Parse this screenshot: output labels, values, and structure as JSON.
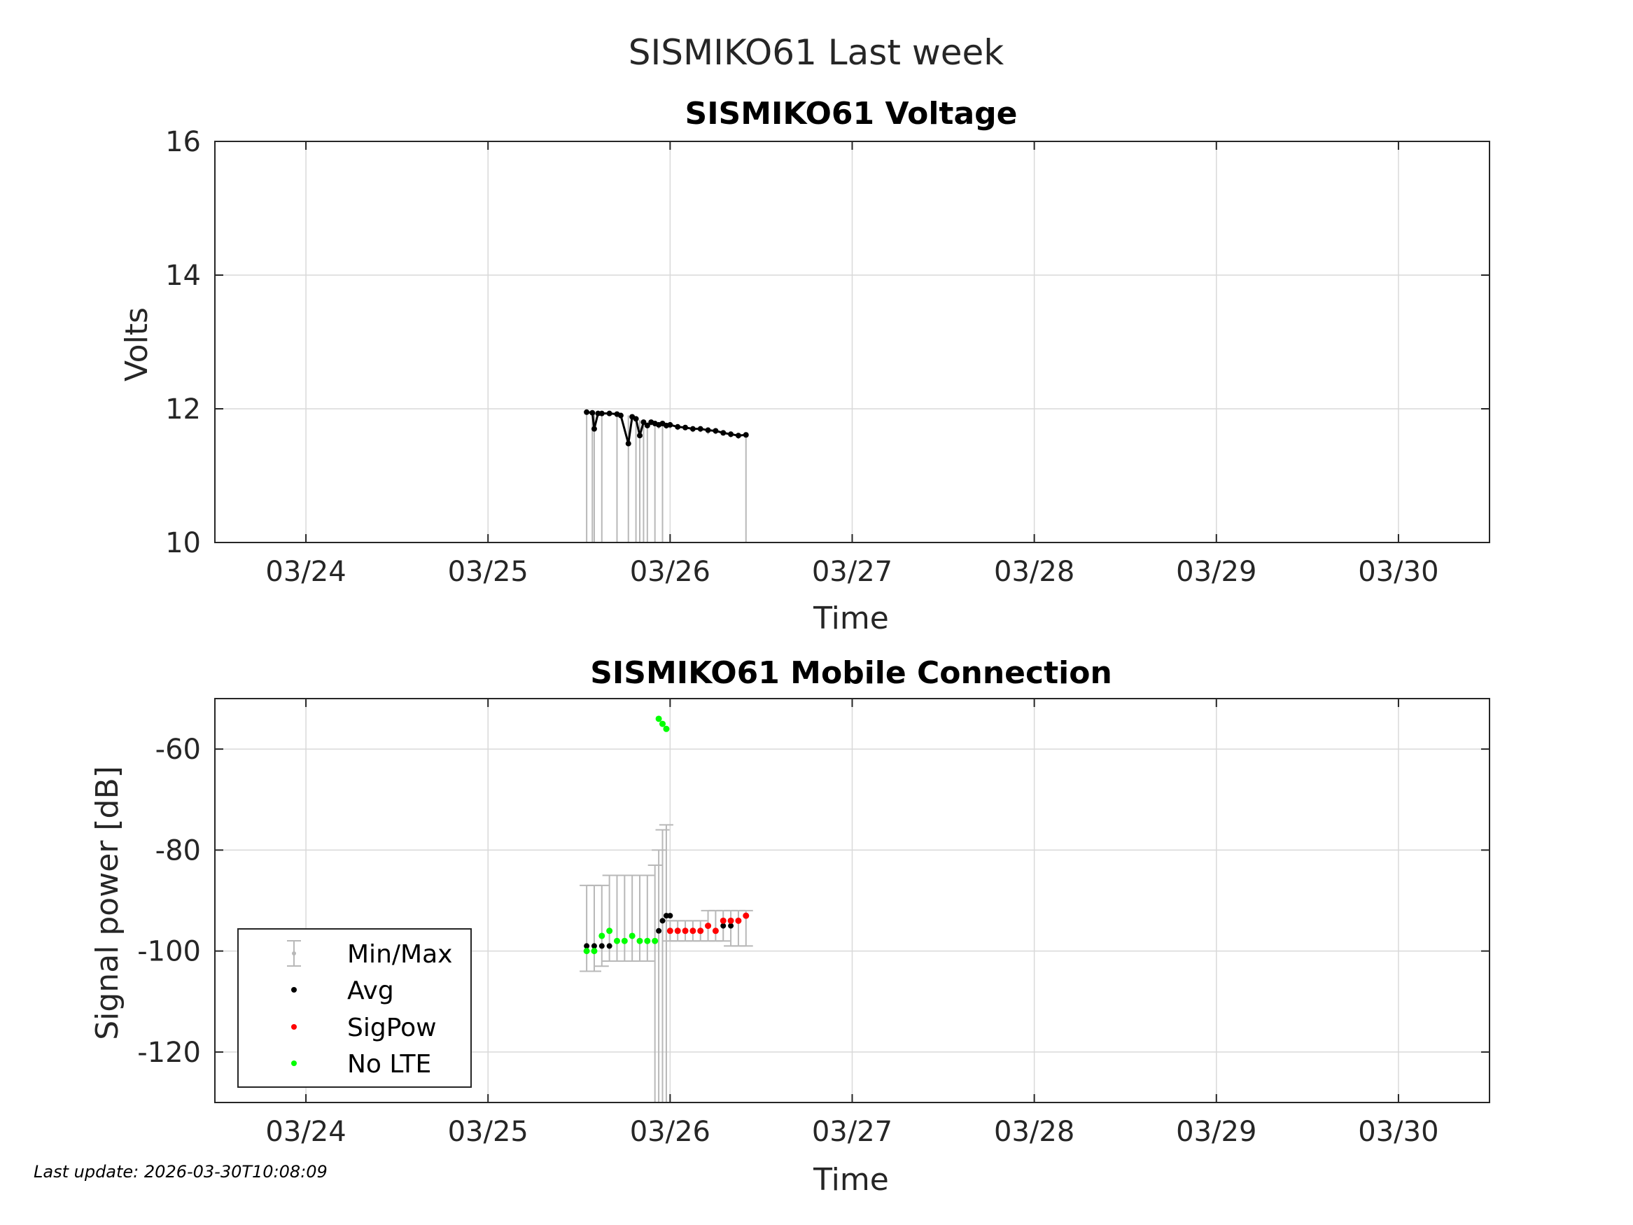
{
  "figure_title": "SISMIKO61 Last week",
  "footer": "Last update: 2026-03-30T10:08:09",
  "colors": {
    "axis": "#262626",
    "grid": "#d9d9d9",
    "minmax": "#b8b8b8",
    "avg": "#000000",
    "sigpow": "#ff0000",
    "nolte": "#00ff00",
    "voltage_line": "#000000"
  },
  "chart_data": [
    {
      "type": "scatter",
      "title": "SISMIKO61 Voltage",
      "xlabel": "Time",
      "ylabel": "Volts",
      "xlim": [
        "2026-03-23 12:00",
        "2026-03-30 12:00"
      ],
      "ylim": [
        10,
        16
      ],
      "xticks": [
        "03/24",
        "03/25",
        "03/26",
        "03/27",
        "03/28",
        "03/29",
        "03/30"
      ],
      "yticks": [
        "10",
        "12",
        "14",
        "16"
      ],
      "grid": true,
      "series": [
        {
          "values_kind": "voltage",
          "x": [
            "2026-03-25 13:00",
            "2026-03-25 13:45",
            "2026-03-25 14:00",
            "2026-03-25 14:30",
            "2026-03-25 15:00",
            "2026-03-25 16:00",
            "2026-03-25 17:00",
            "2026-03-25 17:30",
            "2026-03-25 18:30",
            "2026-03-25 19:00",
            "2026-03-25 19:30",
            "2026-03-25 20:00",
            "2026-03-25 20:30",
            "2026-03-25 21:00",
            "2026-03-25 21:30",
            "2026-03-25 22:00",
            "2026-03-25 22:30",
            "2026-03-25 23:00",
            "2026-03-25 23:30",
            "2026-03-26 00:00",
            "2026-03-26 01:00",
            "2026-03-26 02:00",
            "2026-03-26 03:00",
            "2026-03-26 04:00",
            "2026-03-26 05:00",
            "2026-03-26 06:00",
            "2026-03-26 07:00",
            "2026-03-26 08:00",
            "2026-03-26 09:00",
            "2026-03-26 10:00"
          ],
          "y": [
            11.95,
            11.94,
            11.7,
            11.93,
            11.93,
            11.93,
            11.92,
            11.9,
            11.48,
            11.88,
            11.85,
            11.6,
            11.8,
            11.75,
            11.8,
            11.78,
            11.76,
            11.78,
            11.75,
            11.76,
            11.73,
            11.72,
            11.7,
            11.7,
            11.68,
            11.67,
            11.64,
            11.62,
            11.6,
            11.61
          ],
          "min": [
            10.0,
            10.0,
            10.0,
            11.9,
            10.0,
            11.9,
            10.0,
            11.85,
            10.0,
            11.8,
            10.0,
            10.0,
            10.0,
            10.0,
            11.75,
            10.0,
            11.7,
            10.0,
            11.7,
            11.7,
            11.68,
            11.68,
            11.65,
            11.65,
            11.62,
            11.62,
            11.6,
            11.57,
            11.55,
            10.0
          ],
          "max": [
            11.97,
            11.96,
            11.95,
            11.95,
            11.95,
            11.94,
            11.94,
            11.92,
            11.9,
            11.9,
            11.87,
            11.83,
            11.83,
            11.8,
            11.82,
            11.8,
            11.79,
            11.8,
            11.78,
            11.78,
            11.76,
            11.75,
            11.73,
            11.73,
            11.71,
            11.7,
            11.68,
            11.66,
            11.64,
            11.64
          ]
        }
      ]
    },
    {
      "type": "scatter",
      "title": "SISMIKO61 Mobile Connection",
      "xlabel": "Time",
      "ylabel": "Signal power [dB]",
      "xlim": [
        "2026-03-23 12:00",
        "2026-03-30 12:00"
      ],
      "ylim": [
        -130,
        -50
      ],
      "xticks": [
        "03/24",
        "03/25",
        "03/26",
        "03/27",
        "03/28",
        "03/29",
        "03/30"
      ],
      "yticks": [
        "-60",
        "-80",
        "-100",
        "-120"
      ],
      "grid": true,
      "legend": {
        "placement": "bottom-left",
        "entries": [
          "Min/Max",
          "Avg",
          "SigPow",
          "No LTE"
        ]
      },
      "minmax": {
        "x": [
          "2026-03-25 13:00",
          "2026-03-25 14:00",
          "2026-03-25 15:00",
          "2026-03-25 16:00",
          "2026-03-25 17:00",
          "2026-03-25 18:00",
          "2026-03-25 19:00",
          "2026-03-25 20:00",
          "2026-03-25 21:00",
          "2026-03-25 22:00",
          "2026-03-25 22:30",
          "2026-03-25 23:00",
          "2026-03-25 23:30",
          "2026-03-26 00:00",
          "2026-03-26 01:00",
          "2026-03-26 02:00",
          "2026-03-26 03:00",
          "2026-03-26 04:00",
          "2026-03-26 05:00",
          "2026-03-26 06:00",
          "2026-03-26 07:00",
          "2026-03-26 08:00",
          "2026-03-26 09:00",
          "2026-03-26 10:00"
        ],
        "min": [
          -104,
          -104,
          -103,
          -102,
          -102,
          -102,
          -102,
          -102,
          -102,
          -130,
          -130,
          -130,
          -130,
          -98,
          -98,
          -98,
          -98,
          -98,
          -98,
          -98,
          -98,
          -99,
          -99,
          -99
        ],
        "max": [
          -87,
          -87,
          -87,
          -85,
          -85,
          -85,
          -85,
          -85,
          -85,
          -83,
          -80,
          -76,
          -75,
          -94,
          -94,
          -94,
          -94,
          -94,
          -92,
          -92,
          -92,
          -92,
          -92,
          -92
        ]
      },
      "avg": {
        "x": [
          "2026-03-25 13:00",
          "2026-03-25 14:00",
          "2026-03-25 15:00",
          "2026-03-25 16:00",
          "2026-03-25 17:00",
          "2026-03-25 22:30",
          "2026-03-25 23:00",
          "2026-03-25 23:30",
          "2026-03-26 00:00",
          "2026-03-26 07:00",
          "2026-03-26 08:00"
        ],
        "y": [
          -99,
          -99,
          -99,
          -99,
          -98,
          -96,
          -94,
          -93,
          -93,
          -95,
          -95
        ]
      },
      "sigpow": {
        "x": [
          "2026-03-26 00:00",
          "2026-03-26 01:00",
          "2026-03-26 02:00",
          "2026-03-26 03:00",
          "2026-03-26 04:00",
          "2026-03-26 05:00",
          "2026-03-26 06:00",
          "2026-03-26 07:00",
          "2026-03-26 08:00",
          "2026-03-26 09:00",
          "2026-03-26 10:00"
        ],
        "y": [
          -96,
          -96,
          -96,
          -96,
          -96,
          -95,
          -96,
          -94,
          -94,
          -94,
          -93
        ]
      },
      "nolte": {
        "x": [
          "2026-03-25 13:00",
          "2026-03-25 14:00",
          "2026-03-25 15:00",
          "2026-03-25 16:00",
          "2026-03-25 17:00",
          "2026-03-25 18:00",
          "2026-03-25 19:00",
          "2026-03-25 20:00",
          "2026-03-25 21:00",
          "2026-03-25 22:00",
          "2026-03-25 22:30",
          "2026-03-25 23:00",
          "2026-03-25 23:30"
        ],
        "y": [
          -100,
          -100,
          -97,
          -96,
          -98,
          -98,
          -97,
          -98,
          -98,
          -98,
          -54,
          -55,
          -56
        ]
      }
    }
  ]
}
